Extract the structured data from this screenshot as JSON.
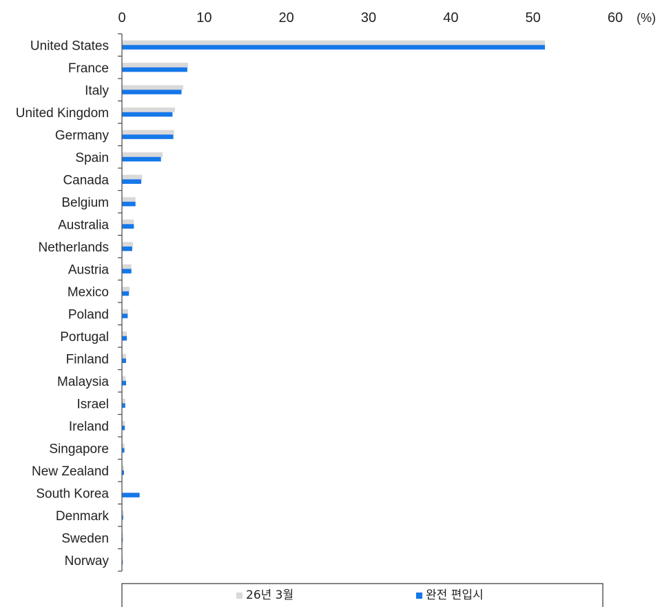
{
  "chart_data": {
    "type": "bar",
    "orientation": "horizontal",
    "x_unit": "(%)",
    "xlim": [
      0,
      60
    ],
    "x_ticks": [
      "0",
      "10",
      "20",
      "30",
      "40",
      "50",
      "60"
    ],
    "grid": false,
    "legend_position": "bottom",
    "categories": [
      "United States",
      "France",
      "Italy",
      "United Kingdom",
      "Germany",
      "Spain",
      "Canada",
      "Belgium",
      "Australia",
      "Netherlands",
      "Austria",
      "Mexico",
      "Poland",
      "Portugal",
      "Finland",
      "Malaysia",
      "Israel",
      "Ireland",
      "Singapore",
      "New Zealand",
      "South Korea",
      "Denmark",
      "Sweden",
      "Norway"
    ],
    "series": [
      {
        "name": "26년 3월",
        "color": "#d9d9d9",
        "values": [
          51.4,
          8.0,
          7.4,
          6.4,
          6.3,
          4.9,
          2.4,
          1.6,
          1.4,
          1.3,
          1.1,
          0.9,
          0.7,
          0.55,
          0.45,
          0.4,
          0.35,
          0.3,
          0.25,
          0.2,
          0.0,
          0.15,
          0.1,
          0.05
        ]
      },
      {
        "name": "완전 편입시",
        "color": "#1677e8",
        "values": [
          51.4,
          7.9,
          7.2,
          6.1,
          6.2,
          4.7,
          2.3,
          1.6,
          1.4,
          1.2,
          1.1,
          0.8,
          0.65,
          0.55,
          0.45,
          0.45,
          0.35,
          0.3,
          0.25,
          0.2,
          2.1,
          0.1,
          0.05,
          0.05
        ]
      }
    ]
  }
}
